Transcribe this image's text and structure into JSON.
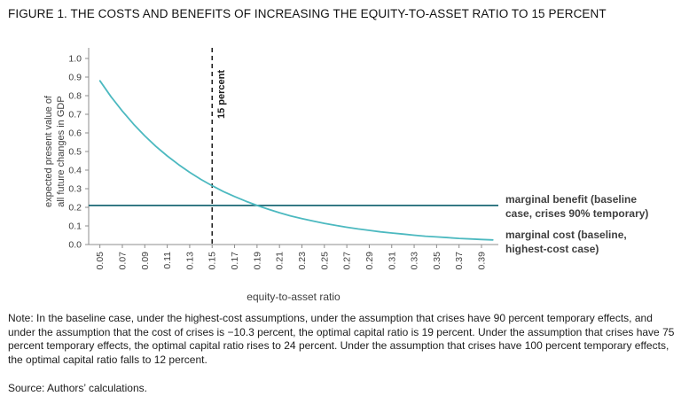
{
  "figure": {
    "title": "FIGURE 1. THE COSTS AND BENEFITS OF INCREASING THE EQUITY-TO-ASSET RATIO TO 15 PERCENT",
    "note": "Note: In the baseline case, under the highest-cost assumptions, under the assumption that crises have 90 percent temporary effects, and under the assumption that the cost of crises is −10.3 percent, the optimal capital ratio is 19 percent. Under the assumption that crises have 75 percent temporary effects, the optimal capital ratio rises to 24 percent. Under the assumption that crises have 100 percent temporary effects, the optimal capital ratio falls to 12 percent.",
    "source": "Source: Authors’ calculations."
  },
  "chart_data": {
    "type": "line",
    "title": "",
    "xlabel": "equity-to-asset ratio",
    "ylabel": "expected present value of all future changes in GDP",
    "ylabel_lines": [
      "expected present value of",
      "all future changes in GDP"
    ],
    "xlim": [
      0.04,
      0.405
    ],
    "ylim": [
      0.0,
      1.0
    ],
    "x_ticks": [
      0.05,
      0.07,
      0.09,
      0.11,
      0.13,
      0.15,
      0.17,
      0.19,
      0.21,
      0.23,
      0.25,
      0.27,
      0.29,
      0.31,
      0.33,
      0.35,
      0.37,
      0.39
    ],
    "y_ticks": [
      0.0,
      0.1,
      0.2,
      0.3,
      0.4,
      0.5,
      0.6,
      0.7,
      0.8,
      0.9,
      1.0
    ],
    "grid": false,
    "annotation": {
      "x": 0.15,
      "label": "15 percent"
    },
    "series": [
      {
        "name": "marginal benefit (baseline case, crises 90% temporary)",
        "kind": "hline",
        "value": 0.21,
        "color": "#1b6875"
      },
      {
        "name": "marginal cost (baseline, highest-cost case)",
        "kind": "line",
        "color": "#4cb9c0",
        "x": [
          0.05,
          0.06,
          0.07,
          0.08,
          0.09,
          0.1,
          0.11,
          0.12,
          0.13,
          0.14,
          0.15,
          0.16,
          0.17,
          0.18,
          0.19,
          0.2,
          0.21,
          0.22,
          0.23,
          0.24,
          0.25,
          0.26,
          0.27,
          0.28,
          0.29,
          0.3,
          0.31,
          0.32,
          0.33,
          0.34,
          0.35,
          0.36,
          0.37,
          0.38,
          0.39,
          0.4
        ],
        "y": [
          0.88,
          0.794,
          0.717,
          0.647,
          0.584,
          0.527,
          0.476,
          0.43,
          0.388,
          0.35,
          0.316,
          0.285,
          0.258,
          0.233,
          0.21,
          0.19,
          0.171,
          0.154,
          0.139,
          0.126,
          0.114,
          0.103,
          0.093,
          0.084,
          0.076,
          0.068,
          0.062,
          0.056,
          0.05,
          0.045,
          0.041,
          0.037,
          0.033,
          0.03,
          0.027,
          0.025
        ]
      }
    ],
    "legend_position": "right",
    "legend": [
      {
        "lines": [
          "marginal benefit (baseline",
          "case, crises 90% temporary)"
        ],
        "color": "#1b6875"
      },
      {
        "lines": [
          "marginal cost (baseline,",
          "highest-cost case)"
        ],
        "color": "#4cb9c0"
      }
    ]
  }
}
